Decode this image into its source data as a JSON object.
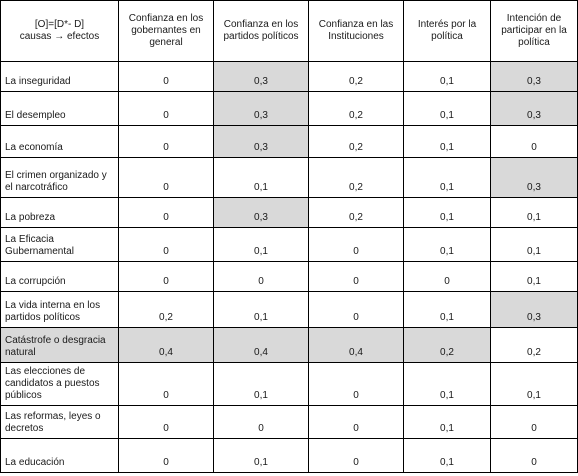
{
  "header": {
    "corner_line1": "[O]=[D*- D]",
    "corner_line2": "causas → efectos",
    "columns": [
      "Confianza en los gobernantes en general",
      "Confianza en los partidos políticos",
      "Confianza en las Instituciones",
      "Interés por la política",
      "Intención de participar en la política"
    ]
  },
  "rows": [
    {
      "label": "La inseguridad",
      "values": [
        "0",
        "0,3",
        "0,2",
        "0,1",
        "0,3"
      ],
      "shaded": [
        false,
        true,
        false,
        false,
        true
      ]
    },
    {
      "label": "El desempleo",
      "values": [
        "0",
        "0,3",
        "0,2",
        "0,1",
        "0,3"
      ],
      "shaded": [
        false,
        true,
        false,
        false,
        true
      ]
    },
    {
      "label": "La economía",
      "values": [
        "0",
        "0,3",
        "0,2",
        "0,1",
        "0"
      ],
      "shaded": [
        false,
        true,
        false,
        false,
        false
      ]
    },
    {
      "label": "El crimen organizado y el narcotráfico",
      "values": [
        "0",
        "0,1",
        "0,2",
        "0,1",
        "0,3"
      ],
      "shaded": [
        false,
        false,
        false,
        false,
        true
      ]
    },
    {
      "label": "La pobreza",
      "values": [
        "0",
        "0,3",
        "0,2",
        "0,1",
        "0,1"
      ],
      "shaded": [
        false,
        true,
        false,
        false,
        false
      ]
    },
    {
      "label": "La Eficacia Gubernamental",
      "values": [
        "0",
        "0,1",
        "0",
        "0,1",
        "0,1"
      ],
      "shaded": [
        false,
        false,
        false,
        false,
        false
      ]
    },
    {
      "label": "La corrupción",
      "values": [
        "0",
        "0",
        "0",
        "0",
        "0,1"
      ],
      "shaded": [
        false,
        false,
        false,
        false,
        false
      ]
    },
    {
      "label": "La vida interna en los partidos políticos",
      "values": [
        "0,2",
        "0,1",
        "0",
        "0,1",
        "0,3"
      ],
      "shaded": [
        false,
        false,
        false,
        false,
        true
      ]
    },
    {
      "label": "Catástrofe o desgracia natural",
      "values": [
        "0,4",
        "0,4",
        "0,4",
        "0,2",
        "0,2"
      ],
      "shaded": [
        true,
        true,
        true,
        true,
        false
      ],
      "label_shaded": true
    },
    {
      "label": "Las elecciones de candidatos a puestos públicos",
      "values": [
        "0",
        "0,1",
        "0",
        "0,1",
        "0,1"
      ],
      "shaded": [
        false,
        false,
        false,
        false,
        false
      ]
    },
    {
      "label": "Las reformas, leyes o decretos",
      "values": [
        "0",
        "0",
        "0",
        "0,1",
        "0"
      ],
      "shaded": [
        false,
        false,
        false,
        false,
        false
      ]
    },
    {
      "label": "La educación",
      "values": [
        "0",
        "0,1",
        "0",
        "0,1",
        "0"
      ],
      "shaded": [
        false,
        false,
        false,
        false,
        false
      ]
    }
  ]
}
